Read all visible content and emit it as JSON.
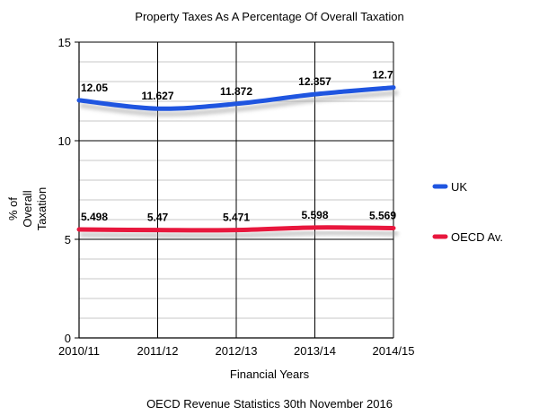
{
  "chart_data": {
    "type": "line",
    "title": "Property Taxes As A Percentage Of Overall Taxation",
    "xlabel": "Financial Years",
    "ylabel_lines": [
      "% of",
      "Overall",
      "Taxation"
    ],
    "source": "OECD Revenue Statistics 30th November 2016",
    "categories": [
      "2010/11",
      "2011/12",
      "2012/13",
      "2013/14",
      "2014/15"
    ],
    "ylim": [
      0,
      15
    ],
    "y_ticks": [
      0,
      5,
      10,
      15
    ],
    "grid": true,
    "legend_position": "right",
    "series": [
      {
        "name": "UK",
        "color": "#1f55e0",
        "values": [
          12.05,
          11.627,
          11.872,
          12.357,
          12.7
        ],
        "labels": [
          "12.05",
          "11.627",
          "11.872",
          "12.357",
          "12.7"
        ]
      },
      {
        "name": "OECD Av.",
        "color": "#e8173d",
        "values": [
          5.498,
          5.47,
          5.471,
          5.598,
          5.569
        ],
        "labels": [
          "5.498",
          "5.47",
          "5.471",
          "5.598",
          "5.569"
        ]
      }
    ]
  }
}
